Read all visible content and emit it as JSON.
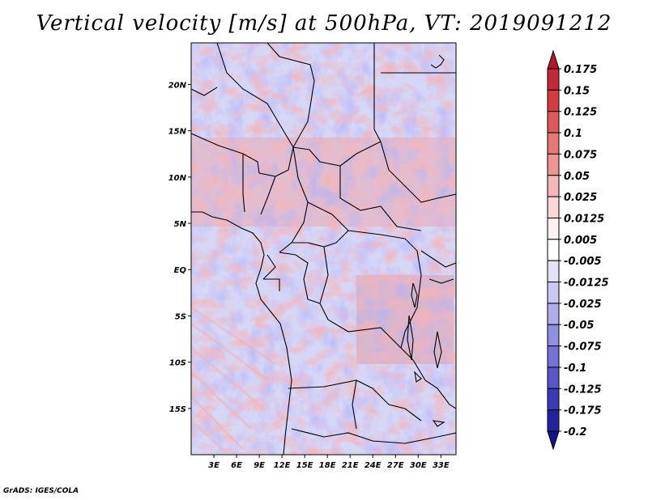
{
  "title": "Vertical velocity [m/s] at 500hPa, VT: 2019091212",
  "credit": "GrADS: IGES/COLA",
  "map": {
    "lat_labels": [
      "20N",
      "15N",
      "10N",
      "5N",
      "EQ",
      "5S",
      "10S",
      "15S"
    ],
    "lat_values": [
      20,
      15,
      10,
      5,
      0,
      -5,
      -10,
      -15
    ],
    "lon_labels": [
      "3E",
      "6E",
      "9E",
      "12E",
      "15E",
      "18E",
      "21E",
      "24E",
      "27E",
      "30E",
      "33E"
    ],
    "lon_values": [
      3,
      6,
      9,
      12,
      15,
      18,
      21,
      24,
      27,
      30,
      33
    ],
    "lat_range": [
      -20,
      24.5
    ],
    "lon_range": [
      0,
      35
    ]
  },
  "colorbar": {
    "labels": [
      "0.175",
      "0.15",
      "0.125",
      "0.1",
      "0.075",
      "0.05",
      "0.025",
      "0.0125",
      "0.005",
      "-0.005",
      "-0.0125",
      "-0.025",
      "-0.05",
      "-0.075",
      "-0.1",
      "-0.125",
      "-0.175",
      "-0.2"
    ],
    "colors": [
      "#b2182b",
      "#c22a35",
      "#d13c40",
      "#dc5a5a",
      "#e57777",
      "#ee9696",
      "#f5b7b7",
      "#fad6d6",
      "#fdf0f0",
      "#ffffff",
      "#e2e2f8",
      "#c8c8f2",
      "#aeaeec",
      "#9090e2",
      "#7373d6",
      "#5757c8",
      "#3b3bb6",
      "#2323a0",
      "#14148a"
    ]
  }
}
